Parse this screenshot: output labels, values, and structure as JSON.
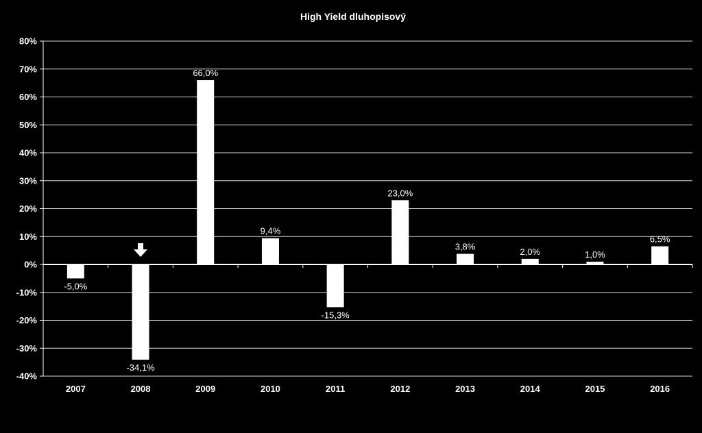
{
  "chart_data": {
    "type": "bar",
    "title": "High Yield dluhopisový",
    "categories": [
      "2007",
      "2008",
      "2009",
      "2010",
      "2011",
      "2012",
      "2013",
      "2014",
      "2015",
      "2016"
    ],
    "values": [
      -5.0,
      -34.1,
      66.0,
      9.4,
      -15.3,
      23.0,
      3.8,
      2.0,
      1.0,
      6.5
    ],
    "data_labels": [
      "-5,0%",
      "-34,1%",
      "66,0%",
      "9,4%",
      "-15,3%",
      "23,0%",
      "3,8%",
      "2,0%",
      "1,0%",
      "6,5%"
    ],
    "ytick_values": [
      80,
      70,
      60,
      50,
      40,
      30,
      20,
      10,
      0,
      -10,
      -20,
      -30,
      -40
    ],
    "ytick_labels": [
      "80%",
      "70%",
      "60%",
      "50%",
      "40%",
      "30%",
      "20%",
      "10%",
      "0%",
      "-10%",
      "-20%",
      "-30%",
      "-40%"
    ],
    "ylim": [
      -40,
      80
    ],
    "grid": true,
    "bar_color": "#ffffff",
    "background": "#000000",
    "marker": {
      "category": "2008",
      "icon": "down-arrow-icon"
    }
  }
}
